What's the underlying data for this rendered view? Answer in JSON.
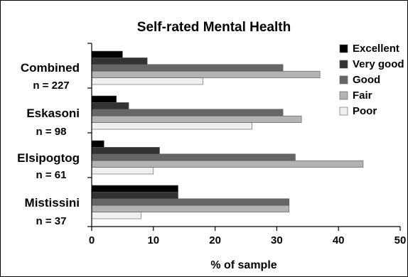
{
  "chart_data": {
    "type": "bar",
    "orientation": "horizontal",
    "title": "Self-rated Mental Health",
    "xlabel": "% of sample",
    "ylabel": "",
    "xlim": [
      0,
      50
    ],
    "xticks": [
      0,
      10,
      20,
      30,
      40,
      50
    ],
    "grid": false,
    "legend_position": "top-right",
    "categories": [
      {
        "name": "Combined",
        "n_label": "n = 227"
      },
      {
        "name": "Eskasoni",
        "n_label": "n = 98"
      },
      {
        "name": "Elsipogtog",
        "n_label": "n = 61"
      },
      {
        "name": "Mistissini",
        "n_label": "n = 37"
      }
    ],
    "series": [
      {
        "name": "Excellent",
        "color": "#000000",
        "values": [
          5,
          4,
          2,
          14
        ]
      },
      {
        "name": "Very good",
        "color": "#333333",
        "values": [
          9,
          6,
          11,
          14
        ]
      },
      {
        "name": "Good",
        "color": "#666666",
        "values": [
          31,
          31,
          33,
          32
        ]
      },
      {
        "name": "Fair",
        "color": "#b3b3b3",
        "values": [
          37,
          34,
          44,
          32
        ]
      },
      {
        "name": "Poor",
        "color": "#f0f0f0",
        "values": [
          18,
          26,
          10,
          8
        ]
      }
    ]
  }
}
